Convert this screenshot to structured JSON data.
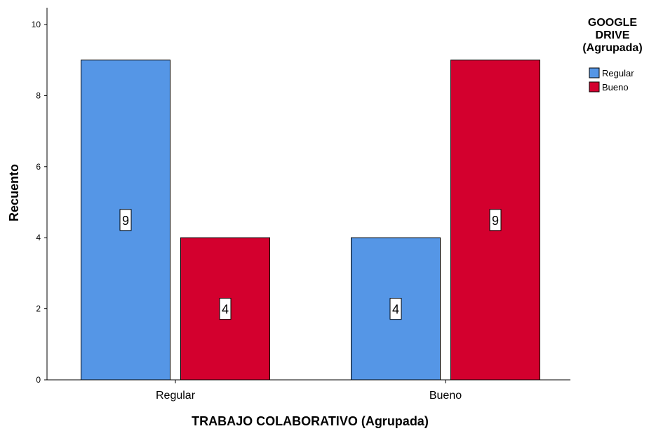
{
  "chart_data": {
    "type": "bar",
    "categories": [
      "Regular",
      "Bueno"
    ],
    "series": [
      {
        "name": "Regular",
        "color": "#5596E6",
        "values": [
          9,
          4
        ]
      },
      {
        "name": "Bueno",
        "color": "#D3002E",
        "values": [
          4,
          9
        ]
      }
    ],
    "xlabel": "TRABAJO COLABORATIVO (Agrupada)",
    "ylabel": "Recuento",
    "ylim": [
      0,
      10
    ],
    "yticks": [
      0,
      2,
      4,
      6,
      8,
      10
    ],
    "legend": {
      "title_lines": [
        "GOOGLE",
        "DRIVE",
        "(Agrupada)"
      ],
      "position": "top-right"
    },
    "grid": false,
    "data_labels": true
  }
}
